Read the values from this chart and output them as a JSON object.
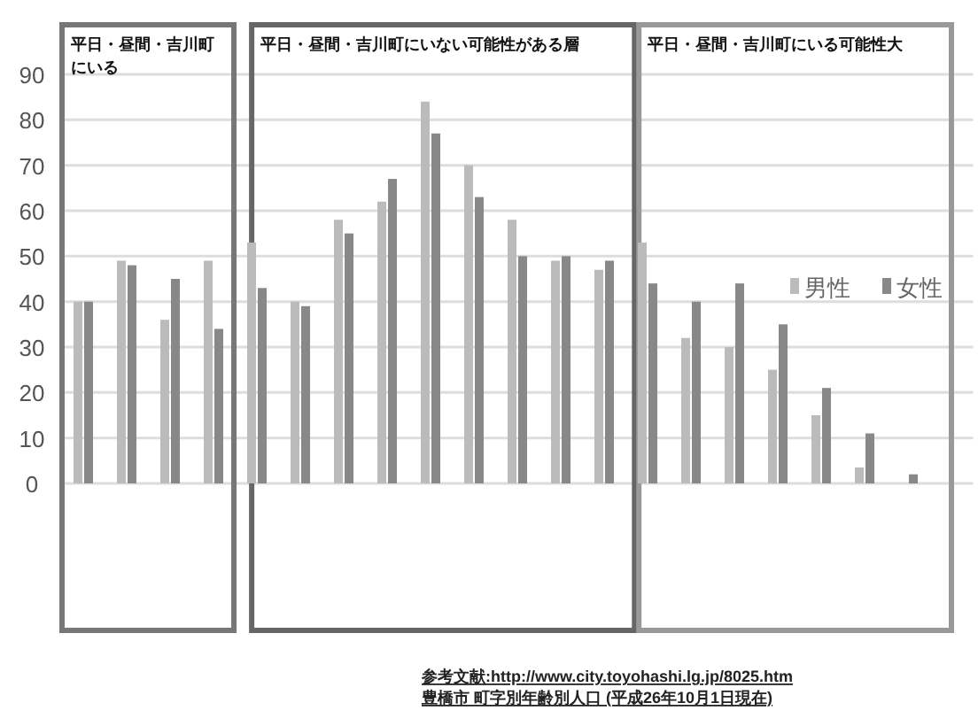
{
  "chart_data": {
    "type": "bar",
    "categories": [
      null,
      null,
      null,
      null,
      null,
      null,
      null,
      null,
      null,
      null,
      null,
      null,
      null,
      null,
      null,
      null,
      null,
      null,
      null,
      null,
      null
    ],
    "series": [
      {
        "name": "男性",
        "color": "#bbbbbb",
        "values": [
          40,
          49,
          36,
          49,
          53,
          40,
          58,
          62,
          84,
          70,
          58,
          49,
          47,
          53,
          32,
          30,
          25,
          15,
          3.5,
          0,
          null
        ]
      },
      {
        "name": "女性",
        "color": "#888888",
        "values": [
          40,
          48,
          45,
          34,
          43,
          39,
          55,
          67,
          77,
          63,
          50,
          50,
          49,
          44,
          40,
          44,
          35,
          21,
          11,
          2,
          null
        ]
      }
    ],
    "ylim": [
      0,
      90
    ],
    "yticks": [
      0,
      10,
      20,
      30,
      40,
      50,
      60,
      70,
      80,
      90
    ],
    "grid": "y",
    "legend": "right",
    "annotations": [
      "平日・昼間・吉川町にいる",
      "平日・昼間・吉川町にいない可能性がある層",
      "平日・昼間・吉川町にいる可能性大",
      "参考文献:http://www.city.toyohashi.lg.jp/8025.htm",
      "豊橋市 町字別年齢別人口 (平成26年10月1日現在)"
    ]
  }
}
